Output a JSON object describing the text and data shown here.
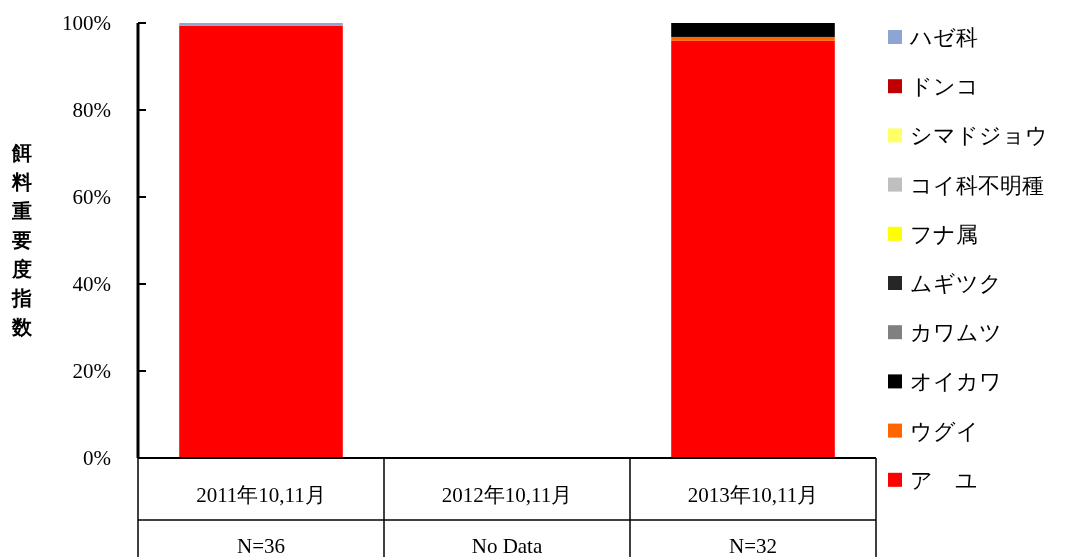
{
  "chart_data": {
    "type": "bar",
    "stacked": true,
    "ylabel": "餌料重要度指数",
    "legend": "right",
    "categories": [
      "2011年10,11月",
      "2012年10,11月",
      "2013年10,11月"
    ],
    "annotations": [
      "N=36",
      "No Data",
      "N=32"
    ],
    "ylim": [
      0,
      100
    ],
    "yticks": [
      {
        "value": 0,
        "label": "0%"
      },
      {
        "value": 20,
        "label": "20%"
      },
      {
        "value": 40,
        "label": "40%"
      },
      {
        "value": 60,
        "label": "60%"
      },
      {
        "value": 80,
        "label": "80%"
      },
      {
        "value": 100,
        "label": "100%"
      }
    ],
    "series": [
      {
        "name": "ア　ユ",
        "color": "#ff0000",
        "values": [
          99.4,
          null,
          95.9
        ]
      },
      {
        "name": "ウグイ",
        "color": "#ff6600",
        "values": [
          0,
          null,
          0.9
        ]
      },
      {
        "name": "オイカワ",
        "color": "#000000",
        "values": [
          0,
          null,
          3.2
        ]
      },
      {
        "name": "カワムツ",
        "color": "#808080",
        "values": [
          0,
          null,
          0
        ]
      },
      {
        "name": "ムギツク",
        "color": "#262626",
        "values": [
          0,
          null,
          0
        ]
      },
      {
        "name": "フナ属",
        "color": "#ffff00",
        "values": [
          0,
          null,
          0
        ]
      },
      {
        "name": "コイ科不明種",
        "color": "#bfbfbf",
        "values": [
          0,
          null,
          0
        ]
      },
      {
        "name": "シマドジョウ",
        "color": "#ffff66",
        "values": [
          0,
          null,
          0
        ]
      },
      {
        "name": "ドンコ",
        "color": "#c00000",
        "values": [
          0,
          null,
          0
        ]
      },
      {
        "name": "ハゼ科",
        "color": "#8ea5d4",
        "values": [
          0.6,
          null,
          0
        ]
      }
    ]
  }
}
